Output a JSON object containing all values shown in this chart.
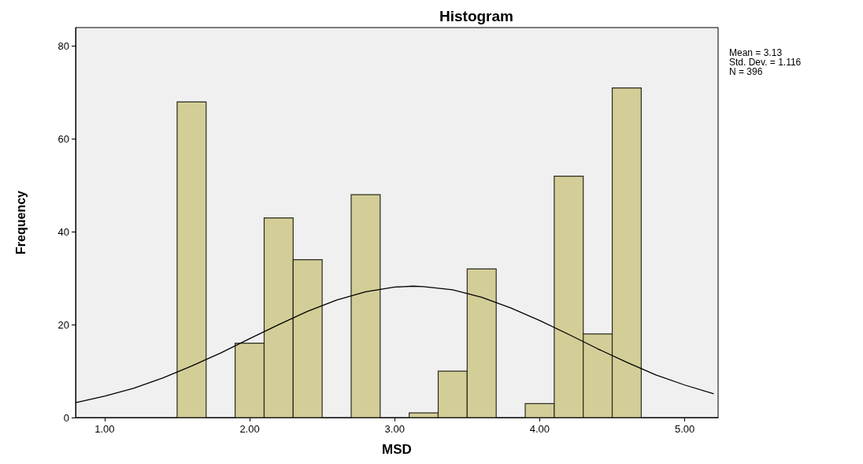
{
  "chart_data": {
    "type": "histogram",
    "title": "Histogram",
    "xlabel": "MSD",
    "ylabel": "Frequency",
    "xlim": [
      0.8,
      5.23
    ],
    "xticks": [
      {
        "value": 1,
        "label": "1.00"
      },
      {
        "value": 2,
        "label": "2.00"
      },
      {
        "value": 3,
        "label": "3.00"
      },
      {
        "value": 4,
        "label": "4.00"
      },
      {
        "value": 5,
        "label": "5.00"
      }
    ],
    "ylim": [
      0,
      84
    ],
    "yticks": [
      0,
      20,
      40,
      60,
      80
    ],
    "grid": false,
    "annotations": [
      "Mean = 3.13",
      "Std. Dev. = 1.116",
      "N = 396"
    ],
    "series": [
      {
        "color": "#d3ce97",
        "bins": [
          1.5,
          1.7,
          1.9,
          2.1,
          2.3,
          2.5,
          2.7,
          2.9,
          3.1,
          3.3,
          3.5,
          3.7,
          3.9,
          4.1,
          4.3,
          4.5,
          4.7
        ],
        "values": [
          68,
          0,
          16,
          43,
          34,
          0,
          48,
          0,
          1,
          10,
          32,
          0,
          3,
          52,
          18,
          71
        ]
      },
      {
        "type": "line",
        "color": "#000000",
        "marker": "none",
        "line_style": "solid",
        "x": [
          0.8,
          1.0,
          1.2,
          1.4,
          1.6,
          1.8,
          2.0,
          2.2,
          2.4,
          2.6,
          2.8,
          3.0,
          3.13,
          3.2,
          3.4,
          3.6,
          3.8,
          4.0,
          4.2,
          4.4,
          4.6,
          4.8,
          5.0,
          5.2
        ],
        "values": [
          3.2,
          4.6,
          6.3,
          8.5,
          11.1,
          13.9,
          17.0,
          20.0,
          22.9,
          25.3,
          27.1,
          28.1,
          28.3,
          28.2,
          27.5,
          25.9,
          23.6,
          20.9,
          17.9,
          14.8,
          11.9,
          9.2,
          7.0,
          5.1
        ]
      }
    ]
  }
}
